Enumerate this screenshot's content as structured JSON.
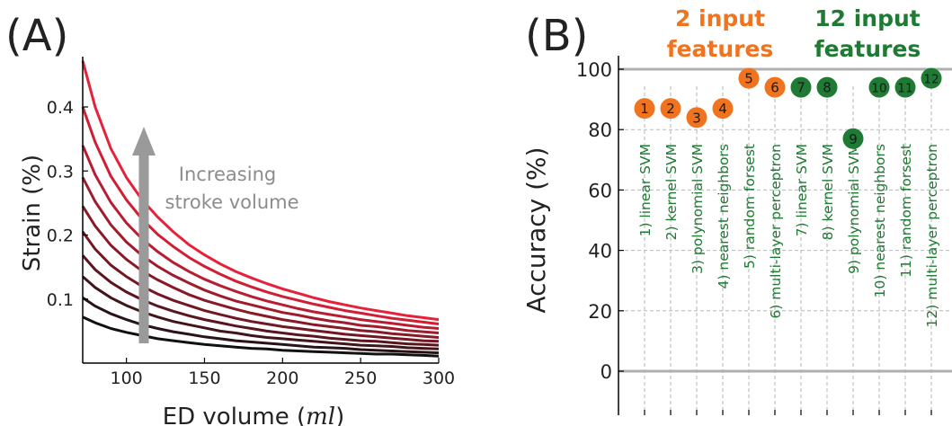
{
  "colors": {
    "orange": "#f0731f",
    "green": "#1f7a33",
    "gray": "#9a9a9a",
    "curve_light": "#e8213a",
    "curve_dark": "#111111"
  },
  "chart_data": [
    {
      "panel_label": "(A)",
      "type": "line",
      "xlabel_text": "ED volume (",
      "xlabel_unit": "ml",
      "xlabel_close": ")",
      "ylabel": "Strain (%)",
      "xlim": [
        72,
        300
      ],
      "ylim": [
        0,
        0.48
      ],
      "xticks": [
        100,
        150,
        200,
        250,
        300
      ],
      "yticks": [
        0.1,
        0.2,
        0.3,
        0.4
      ],
      "ytick_labels": [
        "0.1",
        "0.2",
        "0.3",
        "0.4"
      ],
      "annotation": [
        "Increasing",
        "stroke volume"
      ],
      "x": [
        72,
        80,
        90,
        100,
        110,
        120,
        130,
        140,
        150,
        160,
        170,
        180,
        190,
        200,
        210,
        220,
        230,
        240,
        250,
        260,
        270,
        280,
        290,
        300
      ],
      "series": [
        {
          "y": [
            0.472,
            0.4,
            0.335,
            0.29,
            0.255,
            0.228,
            0.205,
            0.185,
            0.169,
            0.155,
            0.143,
            0.133,
            0.124,
            0.116,
            0.109,
            0.102,
            0.096,
            0.091,
            0.086,
            0.082,
            0.078,
            0.074,
            0.071,
            0.068
          ]
        },
        {
          "y": [
            0.4,
            0.345,
            0.292,
            0.255,
            0.225,
            0.201,
            0.182,
            0.165,
            0.151,
            0.139,
            0.128,
            0.119,
            0.111,
            0.104,
            0.098,
            0.092,
            0.087,
            0.082,
            0.078,
            0.074,
            0.07,
            0.067,
            0.064,
            0.061
          ]
        },
        {
          "y": [
            0.34,
            0.294,
            0.251,
            0.219,
            0.194,
            0.174,
            0.157,
            0.143,
            0.131,
            0.121,
            0.112,
            0.104,
            0.097,
            0.091,
            0.085,
            0.08,
            0.076,
            0.072,
            0.068,
            0.065,
            0.062,
            0.059,
            0.056,
            0.054
          ]
        },
        {
          "y": [
            0.29,
            0.252,
            0.216,
            0.189,
            0.168,
            0.151,
            0.137,
            0.125,
            0.114,
            0.105,
            0.097,
            0.091,
            0.085,
            0.079,
            0.075,
            0.07,
            0.066,
            0.063,
            0.059,
            0.057,
            0.054,
            0.051,
            0.049,
            0.047
          ]
        },
        {
          "y": [
            0.245,
            0.214,
            0.184,
            0.162,
            0.144,
            0.13,
            0.118,
            0.107,
            0.098,
            0.091,
            0.084,
            0.078,
            0.073,
            0.068,
            0.064,
            0.06,
            0.057,
            0.054,
            0.051,
            0.049,
            0.046,
            0.044,
            0.042,
            0.04
          ]
        },
        {
          "y": [
            0.205,
            0.178,
            0.153,
            0.135,
            0.12,
            0.108,
            0.098,
            0.09,
            0.082,
            0.076,
            0.07,
            0.065,
            0.061,
            0.057,
            0.054,
            0.051,
            0.048,
            0.045,
            0.043,
            0.041,
            0.039,
            0.037,
            0.035,
            0.034
          ]
        },
        {
          "y": [
            0.168,
            0.146,
            0.126,
            0.111,
            0.099,
            0.089,
            0.081,
            0.074,
            0.068,
            0.063,
            0.058,
            0.054,
            0.05,
            0.047,
            0.044,
            0.042,
            0.039,
            0.037,
            0.035,
            0.034,
            0.032,
            0.03,
            0.029,
            0.028
          ]
        },
        {
          "y": [
            0.135,
            0.118,
            0.102,
            0.09,
            0.08,
            0.072,
            0.065,
            0.06,
            0.055,
            0.05,
            0.047,
            0.043,
            0.04,
            0.038,
            0.036,
            0.034,
            0.032,
            0.03,
            0.028,
            0.027,
            0.026,
            0.024,
            0.023,
            0.022
          ]
        },
        {
          "y": [
            0.102,
            0.089,
            0.077,
            0.068,
            0.06,
            0.054,
            0.049,
            0.045,
            0.041,
            0.038,
            0.035,
            0.033,
            0.031,
            0.029,
            0.027,
            0.025,
            0.024,
            0.023,
            0.021,
            0.02,
            0.019,
            0.018,
            0.017,
            0.016
          ]
        },
        {
          "y": [
            0.072,
            0.063,
            0.054,
            0.048,
            0.043,
            0.038,
            0.035,
            0.032,
            0.029,
            0.027,
            0.025,
            0.023,
            0.022,
            0.02,
            0.019,
            0.018,
            0.017,
            0.016,
            0.015,
            0.014,
            0.014,
            0.013,
            0.012,
            0.011
          ]
        }
      ]
    },
    {
      "panel_label": "(B)",
      "type": "scatter",
      "ylabel": "Accuracy (%)",
      "ylim": [
        -10,
        108
      ],
      "yticks": [
        0,
        20,
        40,
        60,
        80,
        100
      ],
      "ytick_labels": [
        "0",
        "20",
        "40",
        "60",
        "80",
        "100"
      ],
      "groups": [
        {
          "title_line1": "2 input",
          "title_line2": "features",
          "color": "orange"
        },
        {
          "title_line1": "12 input",
          "title_line2": "features",
          "color": "green"
        }
      ],
      "points": [
        {
          "n": "1",
          "label": "1) linear SVM",
          "value": 87,
          "color": "orange"
        },
        {
          "n": "2",
          "label": "2) kernel SVM",
          "value": 87,
          "color": "orange"
        },
        {
          "n": "3",
          "label": "3) polynomial SVM",
          "value": 84,
          "color": "orange"
        },
        {
          "n": "4",
          "label": "4) nearest neighbors",
          "value": 87,
          "color": "orange"
        },
        {
          "n": "5",
          "label": "5) random forsest",
          "value": 97,
          "color": "orange"
        },
        {
          "n": "6",
          "label": "6) multi-layer perceptron",
          "value": 94,
          "color": "orange"
        },
        {
          "n": "7",
          "label": "7) linear SVM",
          "value": 94,
          "color": "green"
        },
        {
          "n": "8",
          "label": "8) kernel SVM",
          "value": 94,
          "color": "green"
        },
        {
          "n": "9",
          "label": "9) polynomial SVM",
          "value": 77,
          "color": "green"
        },
        {
          "n": "10",
          "label": "10) nearest neighbors",
          "value": 94,
          "color": "green"
        },
        {
          "n": "11",
          "label": "11) random forsest",
          "value": 94,
          "color": "green"
        },
        {
          "n": "12",
          "label": "12) multi-layer perceptron",
          "value": 97,
          "color": "green"
        }
      ]
    }
  ]
}
